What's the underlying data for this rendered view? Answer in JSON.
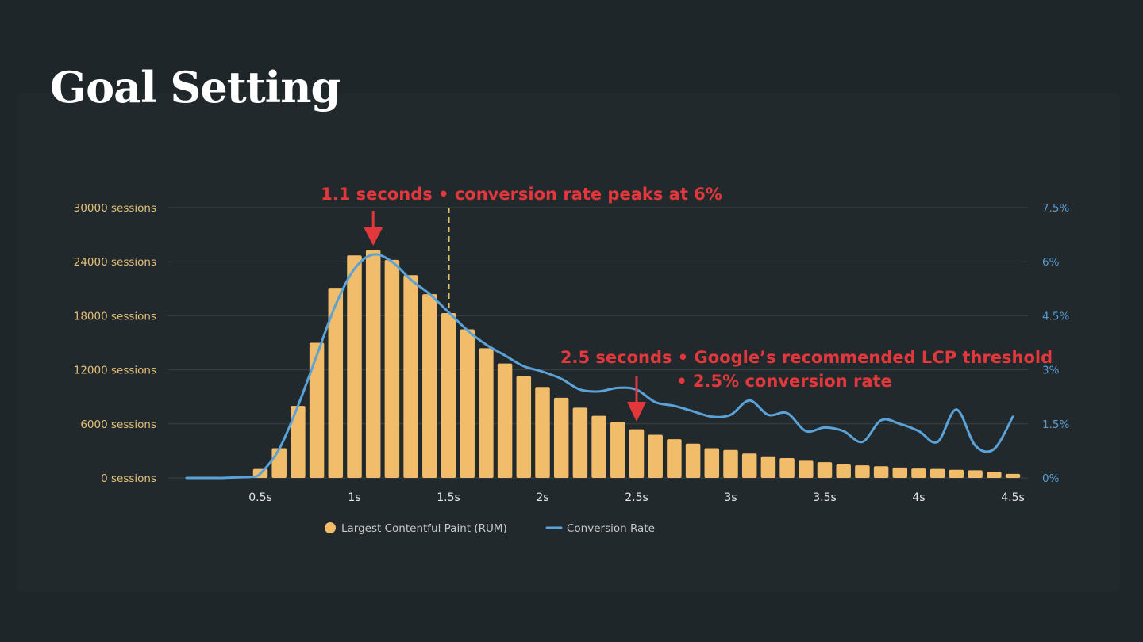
{
  "page": {
    "title": "Goal Setting"
  },
  "colors": {
    "bar": "#f2bd6a",
    "line": "#5aa2d8",
    "annotation": "#e2383c",
    "left_axis": "#e3c07a",
    "right_axis": "#5a9bd0",
    "threshold_line": "#e8c36e"
  },
  "chart_data": {
    "type": "bar",
    "title": "",
    "xlabel": "",
    "ylabel": "sessions",
    "y2label": "conversion rate",
    "ylim": [
      0,
      30000
    ],
    "y2lim": [
      0,
      7.5
    ],
    "xlim": [
      0,
      4.6
    ],
    "grid": true,
    "legend_position": "bottom-center",
    "y_ticks": [
      "0 sessions",
      "6000 sessions",
      "12000 sessions",
      "18000 sessions",
      "24000 sessions",
      "30000 sessions"
    ],
    "y_tick_values": [
      0,
      6000,
      12000,
      18000,
      24000,
      30000
    ],
    "y2_ticks": [
      "0%",
      "1.5%",
      "3%",
      "4.5%",
      "6%",
      "7.5%"
    ],
    "y2_tick_values": [
      0,
      1.5,
      3,
      4.5,
      6,
      7.5
    ],
    "x_ticks": [
      "0.5s",
      "1s",
      "1.5s",
      "2s",
      "2.5s",
      "3s",
      "3.5s",
      "4s",
      "4.5s"
    ],
    "x_tick_values": [
      0.5,
      1,
      1.5,
      2,
      2.5,
      3,
      3.5,
      4,
      4.5
    ],
    "series": [
      {
        "name": "Largest Contentful Paint (RUM)",
        "type": "bar",
        "axis": "left",
        "x": [
          0.5,
          0.6,
          0.7,
          0.8,
          0.9,
          1.0,
          1.1,
          1.2,
          1.3,
          1.4,
          1.5,
          1.6,
          1.7,
          1.8,
          1.9,
          2.0,
          2.1,
          2.2,
          2.3,
          2.4,
          2.5,
          2.6,
          2.7,
          2.8,
          2.9,
          3.0,
          3.1,
          3.2,
          3.3,
          3.4,
          3.5,
          3.6,
          3.7,
          3.8,
          3.9,
          4.0,
          4.1,
          4.2,
          4.3,
          4.4,
          4.5
        ],
        "values": [
          1000,
          3300,
          8000,
          15000,
          21100,
          24700,
          25300,
          24200,
          22500,
          20400,
          18300,
          16500,
          14400,
          12700,
          11300,
          10100,
          8900,
          7800,
          6900,
          6200,
          5400,
          4800,
          4300,
          3800,
          3300,
          3100,
          2700,
          2400,
          2200,
          1900,
          1750,
          1500,
          1400,
          1300,
          1150,
          1050,
          1000,
          900,
          850,
          700,
          450
        ]
      },
      {
        "name": "Conversion Rate",
        "type": "line",
        "axis": "right",
        "x": [
          0.05,
          0.2,
          0.3,
          0.4,
          0.45,
          0.5,
          0.6,
          0.7,
          0.8,
          0.9,
          1.0,
          1.1,
          1.2,
          1.3,
          1.4,
          1.5,
          1.6,
          1.7,
          1.8,
          1.9,
          2.0,
          2.1,
          2.2,
          2.3,
          2.4,
          2.5,
          2.6,
          2.7,
          2.8,
          2.9,
          3.0,
          3.1,
          3.2,
          3.3,
          3.4,
          3.5,
          3.6,
          3.7,
          3.8,
          3.9,
          4.0,
          4.1,
          4.2,
          4.3,
          4.4,
          4.5
        ],
        "values": [
          0,
          0,
          0,
          0.02,
          0.03,
          0.12,
          0.8,
          2.0,
          3.4,
          4.8,
          5.8,
          6.2,
          6.0,
          5.5,
          5.1,
          4.6,
          4.1,
          3.7,
          3.4,
          3.1,
          2.95,
          2.75,
          2.45,
          2.4,
          2.5,
          2.45,
          2.1,
          2.0,
          1.85,
          1.7,
          1.75,
          2.15,
          1.75,
          1.8,
          1.3,
          1.4,
          1.3,
          1.0,
          1.6,
          1.5,
          1.3,
          1.0,
          1.9,
          0.9,
          0.8,
          1.7
        ]
      }
    ],
    "annotations": [
      {
        "text": "1.1 seconds • conversion rate peaks at 6%",
        "x": 1.1,
        "arrow": "down"
      },
      {
        "text": "2.5 seconds • Google’s recommended LCP threshold",
        "text2": "• 2.5% conversion rate",
        "x": 2.5,
        "arrow": "down"
      }
    ],
    "reference_lines": [
      {
        "x": 1.5,
        "style": "dashed"
      }
    ],
    "legend": [
      {
        "label": "Largest Contentful Paint (RUM)",
        "marker": "circle"
      },
      {
        "label": "Conversion Rate",
        "marker": "line"
      }
    ]
  }
}
